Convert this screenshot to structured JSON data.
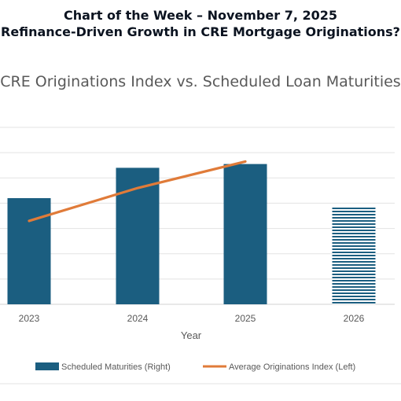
{
  "header": {
    "line1": "Chart of the Week – November 7, 2025",
    "line2": "Refinance-Driven Growth in CRE Mortgage Originations?"
  },
  "chart_data": {
    "type": "bar",
    "title": "CRE Originations Index  vs. Scheduled Loan Maturities",
    "xlabel": "Year",
    "categories": [
      "2023",
      "2024",
      "2025",
      "2026"
    ],
    "grid": true,
    "legend_position": "bottom",
    "series": [
      {
        "name": "Scheduled Maturities (Right)",
        "kind": "bar",
        "color": "#1b5e80",
        "values": [
          4.2,
          5.4,
          5.55,
          3.85
        ],
        "patterns": [
          "solid",
          "solid",
          "solid",
          "horizontal-stripes"
        ]
      },
      {
        "name": "Average Originations Index (Left)",
        "kind": "line",
        "color": "#e07b39",
        "values": [
          3.3,
          4.6,
          5.65,
          null
        ]
      }
    ],
    "ylim": [
      0,
      7
    ]
  }
}
